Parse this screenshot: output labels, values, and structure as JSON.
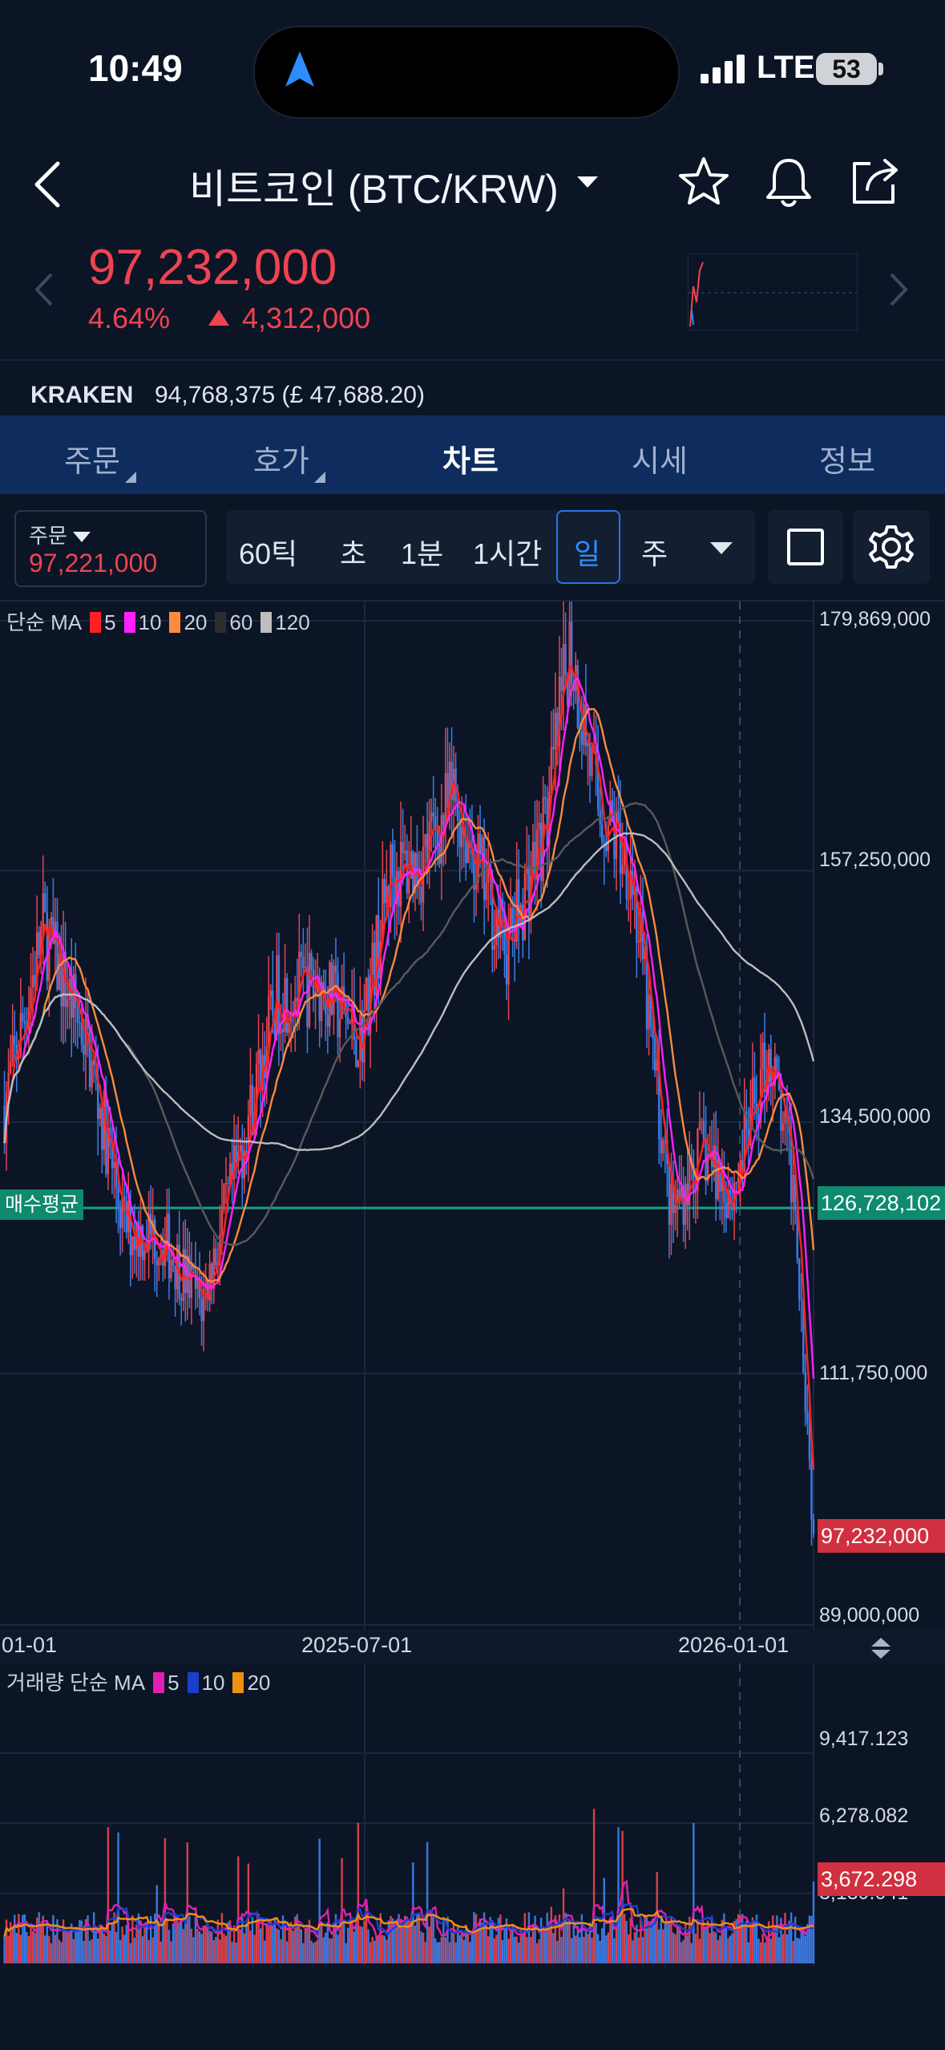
{
  "status": {
    "time": "10:49",
    "network": "LTE",
    "battery": "53"
  },
  "header": {
    "title": "비트코인 (BTC/KRW)"
  },
  "price": {
    "current": "97,232,000",
    "percent": "4.64%",
    "change": "4,312,000",
    "color": "#ef4351"
  },
  "exchange": {
    "name": "KRAKEN",
    "value": "94,768,375 (£ 47,688.20)"
  },
  "tabs": [
    "주문",
    "호가",
    "차트",
    "시세",
    "정보"
  ],
  "active_tab": "차트",
  "order_box": {
    "label": "주문",
    "value": "97,221,000"
  },
  "timeframes": [
    "60틱",
    "초",
    "1분",
    "1시간",
    "일",
    "주"
  ],
  "active_timeframe": "일",
  "ma_legend": {
    "label": "단순 MA",
    "items": [
      {
        "period": "5",
        "color": "#ff2020"
      },
      {
        "period": "10",
        "color": "#ff20ff"
      },
      {
        "period": "20",
        "color": "#ff8a3d"
      },
      {
        "period": "60",
        "color": "#2e2e2e"
      },
      {
        "period": "120",
        "color": "#bdbdbd"
      }
    ]
  },
  "volume_legend": {
    "label": "거래량 단순 MA",
    "items": [
      {
        "period": "5",
        "color": "#e020b0"
      },
      {
        "period": "10",
        "color": "#1a3fd0"
      },
      {
        "period": "20",
        "color": "#f09010"
      }
    ]
  },
  "avg_buy": {
    "label": "매수평균",
    "value": "126,728,102",
    "color": "#0f8a6e"
  },
  "current_price_badge": {
    "value": "97,232,000",
    "color": "#d0303f"
  },
  "volume_current_badge": {
    "value": "3,672.298"
  },
  "chart_data": {
    "type": "candlestick",
    "price_axis_ticks": [
      179869000,
      157250000,
      134500000,
      111750000,
      89000000
    ],
    "price_axis_labels": [
      "179,869,000",
      "157,250,000",
      "134,500,000",
      "111,750,000",
      "89,000,000"
    ],
    "x_ticks": [
      "01-01",
      "2025-07-01",
      "2026-01-01"
    ],
    "volume_axis_labels": [
      "9,417.123",
      "6,278.082",
      "3,139.041"
    ],
    "close_path": [
      {
        "d": "2025-01-01",
        "p": 136000000
      },
      {
        "d": "2025-01-20",
        "p": 152000000
      },
      {
        "d": "2025-02-10",
        "p": 142000000
      },
      {
        "d": "2025-03-01",
        "p": 125000000
      },
      {
        "d": "2025-03-20",
        "p": 124000000
      },
      {
        "d": "2025-04-08",
        "p": 118000000
      },
      {
        "d": "2025-04-25",
        "p": 130000000
      },
      {
        "d": "2025-05-15",
        "p": 146000000
      },
      {
        "d": "2025-06-05",
        "p": 147000000
      },
      {
        "d": "2025-06-25",
        "p": 142000000
      },
      {
        "d": "2025-07-10",
        "p": 157000000
      },
      {
        "d": "2025-07-25",
        "p": 158000000
      },
      {
        "d": "2025-08-10",
        "p": 164000000
      },
      {
        "d": "2025-08-25",
        "p": 156000000
      },
      {
        "d": "2025-09-05",
        "p": 150000000
      },
      {
        "d": "2025-09-25",
        "p": 162000000
      },
      {
        "d": "2025-10-06",
        "p": 178000000
      },
      {
        "d": "2025-10-20",
        "p": 163000000
      },
      {
        "d": "2025-11-05",
        "p": 158000000
      },
      {
        "d": "2025-11-25",
        "p": 126000000
      },
      {
        "d": "2025-12-10",
        "p": 132000000
      },
      {
        "d": "2025-12-25",
        "p": 128000000
      },
      {
        "d": "2026-01-12",
        "p": 141000000
      },
      {
        "d": "2026-01-25",
        "p": 128000000
      },
      {
        "d": "2026-02-03",
        "p": 97232000
      }
    ]
  }
}
